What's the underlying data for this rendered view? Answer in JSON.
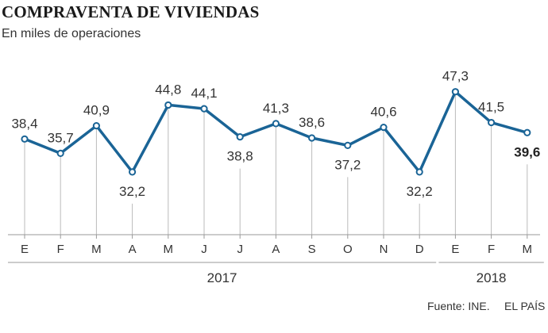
{
  "title": "COMPRAVENTA DE VIVIENDAS",
  "subtitle": "En miles de operaciones",
  "footer": {
    "source": "Fuente: INE.",
    "brand": "EL PAÍS"
  },
  "colors": {
    "line": "#1a6496",
    "marker_fill": "#ffffff",
    "baseline": "#999999",
    "drop_line": "#bbbbbb",
    "label": "#333333"
  },
  "chart_data": {
    "type": "line",
    "categories": [
      "E",
      "F",
      "M",
      "A",
      "M",
      "J",
      "J",
      "A",
      "S",
      "O",
      "N",
      "D",
      "E",
      "F",
      "M"
    ],
    "value_labels": [
      "38,4",
      "35,7",
      "40,9",
      "32,2",
      "44,8",
      "44,1",
      "38,8",
      "41,3",
      "38,6",
      "37,2",
      "40,6",
      "32,2",
      "47,3",
      "41,5",
      "39,6"
    ],
    "series": [
      {
        "values": [
          38.4,
          35.7,
          40.9,
          32.2,
          44.8,
          44.1,
          38.8,
          41.3,
          38.6,
          37.2,
          40.6,
          32.2,
          47.3,
          41.5,
          39.6
        ]
      }
    ],
    "label_position": [
      "above",
      "above",
      "above",
      "below",
      "above",
      "above",
      "below",
      "above",
      "above",
      "below",
      "above",
      "below",
      "above",
      "above",
      "below"
    ],
    "highlight_last": true,
    "year_groups": [
      {
        "label": "2017",
        "start": 0,
        "end": 11
      },
      {
        "label": "2018",
        "start": 12,
        "end": 14
      }
    ],
    "ylim": [
      0,
      50
    ],
    "grid": false,
    "legend": "none",
    "xlabel": "",
    "ylabel": ""
  }
}
